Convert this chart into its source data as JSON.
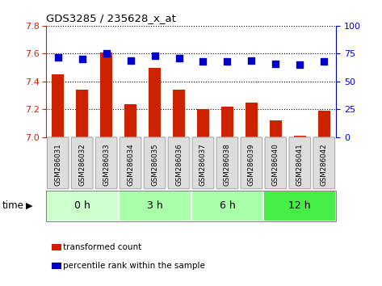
{
  "title": "GDS3285 / 235628_x_at",
  "samples": [
    "GSM286031",
    "GSM286032",
    "GSM286033",
    "GSM286034",
    "GSM286035",
    "GSM286036",
    "GSM286037",
    "GSM286038",
    "GSM286039",
    "GSM286040",
    "GSM286041",
    "GSM286042"
  ],
  "bar_values": [
    7.45,
    7.34,
    7.61,
    7.24,
    7.5,
    7.34,
    7.2,
    7.22,
    7.25,
    7.12,
    7.01,
    7.19
  ],
  "dot_values": [
    72,
    70,
    75,
    69,
    73,
    71,
    68,
    68,
    69,
    66,
    65,
    68
  ],
  "bar_color": "#cc2200",
  "dot_color": "#0000cc",
  "ylim_left": [
    7.0,
    7.8
  ],
  "ylim_right": [
    0,
    100
  ],
  "yticks_left": [
    7.0,
    7.2,
    7.4,
    7.6,
    7.8
  ],
  "yticks_right": [
    0,
    25,
    50,
    75,
    100
  ],
  "group_info": [
    {
      "label": "0 h",
      "start": 0,
      "end": 3,
      "color": "#ccffcc"
    },
    {
      "label": "3 h",
      "start": 3,
      "end": 6,
      "color": "#aaffaa"
    },
    {
      "label": "6 h",
      "start": 6,
      "end": 9,
      "color": "#aaffaa"
    },
    {
      "label": "12 h",
      "start": 9,
      "end": 12,
      "color": "#44ee44"
    }
  ],
  "legend_bar_label": "transformed count",
  "legend_dot_label": "percentile rank within the sample",
  "tick_bg_color": "#dddddd",
  "tick_border_color": "#aaaaaa"
}
